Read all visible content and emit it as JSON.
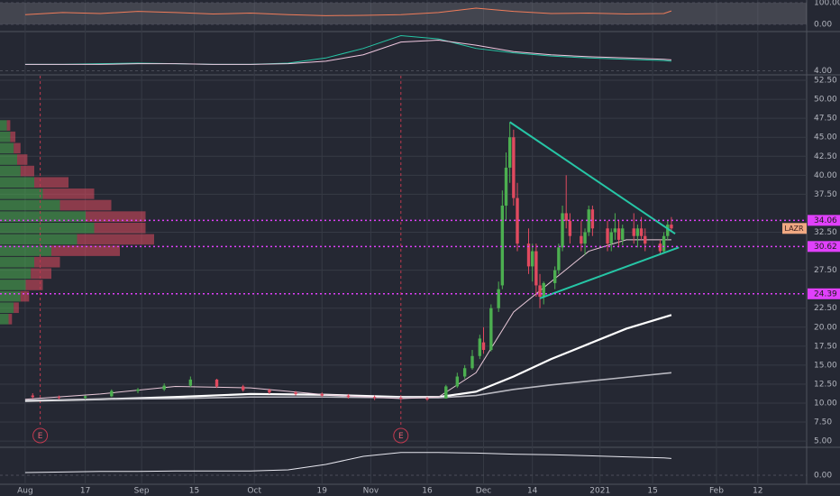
{
  "chart_data": {
    "type": "candlestick",
    "symbol": "LAZR",
    "xlim": [
      -6.7,
      208
    ],
    "xticks": [
      {
        "value": 0,
        "label": "Aug"
      },
      {
        "value": 16,
        "label": "17"
      },
      {
        "value": 31,
        "label": "Sep"
      },
      {
        "value": 45,
        "label": "15"
      },
      {
        "value": 61,
        "label": "Oct"
      },
      {
        "value": 79,
        "label": "19"
      },
      {
        "value": 92,
        "label": "Nov"
      },
      {
        "value": 107,
        "label": "16"
      },
      {
        "value": 122,
        "label": "Dec"
      },
      {
        "value": 135,
        "label": "14"
      },
      {
        "value": 153,
        "label": "2021"
      },
      {
        "value": 167,
        "label": "15"
      },
      {
        "value": 184,
        "label": "Feb"
      },
      {
        "value": 195,
        "label": "12"
      }
    ],
    "ylim": [
      4.3,
      53.1
    ],
    "yticks": [
      {
        "value": 5,
        "label": "5.00"
      },
      {
        "value": 7.5,
        "label": "7.50"
      },
      {
        "value": 10,
        "label": "10.00"
      },
      {
        "value": 12.5,
        "label": "12.50"
      },
      {
        "value": 15,
        "label": "15.00"
      },
      {
        "value": 17.5,
        "label": "17.50"
      },
      {
        "value": 20,
        "label": "20.00"
      },
      {
        "value": 22.5,
        "label": "22.50"
      },
      {
        "value": 27.5,
        "label": "27.50"
      },
      {
        "value": 32.5,
        "label": "32.50"
      },
      {
        "value": 37.5,
        "label": "37.50"
      },
      {
        "value": 40,
        "label": "40.00"
      },
      {
        "value": 42.5,
        "label": "42.50"
      },
      {
        "value": 45,
        "label": "45.00"
      },
      {
        "value": 47.5,
        "label": "47.50"
      },
      {
        "value": 50,
        "label": "50.00"
      },
      {
        "value": 52.5,
        "label": "52.50"
      }
    ],
    "grid": true,
    "candles": {
      "up_color": "#4caf50",
      "down_color": "#e04a5f",
      "x": [
        2,
        9,
        16,
        23,
        30,
        37,
        44,
        51,
        58,
        65,
        72,
        79,
        86,
        93,
        100,
        107,
        112,
        115,
        117,
        119,
        121,
        122,
        124,
        126,
        127,
        128,
        129,
        130,
        131,
        134,
        135,
        136,
        137,
        138,
        141,
        142,
        143,
        144,
        145,
        148,
        149,
        150,
        151,
        155,
        156,
        157,
        158,
        159,
        162,
        163,
        164,
        165,
        169,
        170,
        171,
        172
      ],
      "open": [
        11,
        10.8,
        10.7,
        10.9,
        11.6,
        11.8,
        12.3,
        13.1,
        12.2,
        11.7,
        11.4,
        11.2,
        11,
        10.8,
        10.7,
        10.6,
        10.6,
        12.2,
        13.5,
        14.6,
        16.2,
        18,
        17,
        22.5,
        25.5,
        36,
        41,
        45,
        37,
        31,
        28,
        30,
        25.5,
        24,
        25.8,
        27.5,
        30.5,
        35,
        34,
        32,
        31,
        32.5,
        35.5,
        33,
        31,
        32.5,
        33,
        31.5,
        33,
        32,
        33,
        32,
        31,
        30,
        32,
        33.5
      ],
      "high": [
        11.3,
        11,
        11,
        11.8,
        12,
        12.6,
        13.5,
        13.2,
        12.4,
        11.9,
        11.6,
        11.4,
        11.2,
        11,
        10.9,
        10.8,
        12.4,
        14,
        15,
        17,
        19,
        20,
        23,
        26,
        38,
        43,
        47,
        46,
        39,
        33,
        31,
        31,
        27,
        26,
        28,
        31,
        36,
        40,
        35,
        34,
        33,
        36,
        36,
        34,
        33,
        35,
        34,
        33.5,
        35,
        33.5,
        34.5,
        33,
        31.5,
        32.5,
        34,
        34.5
      ],
      "low": [
        10.6,
        10.5,
        10.5,
        10.8,
        11.3,
        11.6,
        12.1,
        12,
        11.5,
        11.2,
        11,
        10.8,
        10.6,
        10.4,
        10.4,
        10.3,
        10.6,
        12,
        13.2,
        14.4,
        15.8,
        16.5,
        16.8,
        22,
        25,
        34,
        39,
        36,
        30,
        27,
        26,
        24,
        22.5,
        23,
        25,
        27,
        30,
        33,
        31,
        30,
        29.5,
        32,
        32,
        30,
        30,
        31.5,
        30.5,
        30.8,
        31,
        30.5,
        31.5,
        30,
        29.5,
        29.8,
        31.5,
        32.5
      ],
      "close": [
        10.8,
        10.7,
        10.9,
        11.6,
        11.8,
        12.3,
        13.1,
        12.2,
        11.7,
        11.4,
        11.2,
        11,
        10.8,
        10.7,
        10.6,
        10.5,
        12.2,
        13.5,
        14.6,
        16.2,
        18.5,
        17,
        22.5,
        25,
        36,
        41,
        45,
        37,
        31,
        28,
        30,
        25.5,
        24,
        25.8,
        27.5,
        30.5,
        35,
        34,
        32,
        31,
        32.5,
        35.5,
        33,
        31,
        32.5,
        33,
        31.5,
        33,
        32,
        33,
        32,
        31,
        30,
        32,
        33.5,
        33
      ]
    },
    "moving_averages": [
      {
        "color": "#ffffff",
        "width": 2.2,
        "x": [
          0,
          20,
          40,
          60,
          80,
          100,
          110,
          120,
          130,
          140,
          150,
          160,
          172
        ],
        "values": [
          10.3,
          10.5,
          10.8,
          11.2,
          11.1,
          10.8,
          10.8,
          11.5,
          13.5,
          15.8,
          17.8,
          19.8,
          21.6
        ]
      },
      {
        "color": "#b8b8c0",
        "width": 1.6,
        "x": [
          0,
          20,
          40,
          60,
          80,
          100,
          110,
          120,
          130,
          140,
          150,
          160,
          172
        ],
        "values": [
          10.4,
          10.5,
          10.6,
          10.8,
          10.8,
          10.7,
          10.7,
          11,
          11.8,
          12.4,
          12.9,
          13.4,
          14
        ]
      },
      {
        "color": "#e8c8d8",
        "width": 1,
        "x": [
          0,
          20,
          40,
          60,
          80,
          100,
          110,
          120,
          130,
          140,
          150,
          160,
          172
        ],
        "values": [
          10.5,
          11.2,
          12.2,
          12,
          11.1,
          10.6,
          10.8,
          14,
          22,
          26,
          30,
          31.5,
          31.5
        ]
      }
    ],
    "trendlines": [
      {
        "color": "#26c6a6",
        "x": [
          129,
          173
        ],
        "values": [
          47,
          32.3
        ]
      },
      {
        "color": "#26c6a6",
        "x": [
          137,
          174
        ],
        "values": [
          23.8,
          30.5
        ]
      }
    ],
    "price_lines": {
      "color": "#e040fb",
      "values": [
        34.06,
        30.62,
        24.39
      ]
    },
    "earnings": [
      {
        "x": 4,
        "label": "E"
      },
      {
        "x": 100,
        "label": "E"
      }
    ],
    "volume_profile": {
      "up_color": "#4caf50",
      "down_color": "#e04a5f",
      "levels": [
        21,
        22.5,
        24,
        25.5,
        27,
        28.5,
        30,
        31.5,
        33,
        34.5,
        36,
        37.5,
        39,
        40.5,
        42,
        43.5,
        45,
        46.5
      ],
      "up": [
        5,
        8,
        12,
        15,
        18,
        20,
        30,
        45,
        55,
        50,
        35,
        25,
        20,
        12,
        10,
        8,
        6,
        4
      ],
      "down": [
        2,
        3,
        5,
        10,
        12,
        15,
        40,
        45,
        30,
        35,
        30,
        30,
        20,
        8,
        6,
        4,
        3,
        2
      ]
    },
    "panes": [
      {
        "ylim": [
          -29,
          112.5
        ],
        "yticks": [
          {
            "value": 100,
            "label": "100.00"
          },
          {
            "value": 0,
            "label": "0.00"
          }
        ],
        "x": [
          0,
          10,
          20,
          30,
          40,
          50,
          60,
          70,
          80,
          90,
          100,
          110,
          120,
          130,
          140,
          150,
          160,
          170,
          172
        ],
        "series": [
          {
            "color": "#f07c5a",
            "values": [
              45,
              55,
              50,
              60,
              55,
              48,
              52,
              45,
              40,
              42,
              45,
              55,
              75,
              60,
              50,
              52,
              48,
              50,
              62
            ]
          }
        ]
      },
      {
        "ylim": [
          3.5,
          10
        ],
        "yticks": [
          {
            "value": 4,
            "label": "4.00"
          }
        ],
        "x": [
          0,
          10,
          20,
          30,
          40,
          50,
          60,
          70,
          80,
          90,
          100,
          110,
          120,
          130,
          140,
          150,
          160,
          170,
          172
        ],
        "series": [
          {
            "color": "#26c6a6",
            "values": [
              5,
              5,
              5.1,
              5.2,
              5.1,
              5,
              5,
              5.2,
              6,
              7.5,
              9.5,
              9,
              7.5,
              6.8,
              6.3,
              6,
              5.8,
              5.6,
              5.5
            ]
          },
          {
            "color": "#f0c8e0",
            "values": [
              5,
              5,
              5,
              5.1,
              5.1,
              5,
              5,
              5.1,
              5.5,
              6.5,
              8.5,
              8.8,
              8,
              7,
              6.5,
              6.2,
              6,
              5.8,
              5.7
            ]
          }
        ]
      },
      {
        "ylim": [
          -1.5,
          5
        ],
        "yticks": [
          {
            "value": 0,
            "label": "0.00"
          }
        ],
        "x": [
          0,
          10,
          20,
          30,
          40,
          50,
          60,
          70,
          80,
          90,
          100,
          110,
          120,
          130,
          140,
          150,
          160,
          170,
          172
        ],
        "series": [
          {
            "color": "#e8e8f0",
            "values": [
              0.5,
              0.6,
              0.7,
              0.7,
              0.8,
              0.8,
              0.8,
              1,
              2,
              3.5,
              4.2,
              4.2,
              4.1,
              3.9,
              3.8,
              3.6,
              3.4,
              3.2,
              3.1
            ]
          }
        ]
      }
    ]
  }
}
